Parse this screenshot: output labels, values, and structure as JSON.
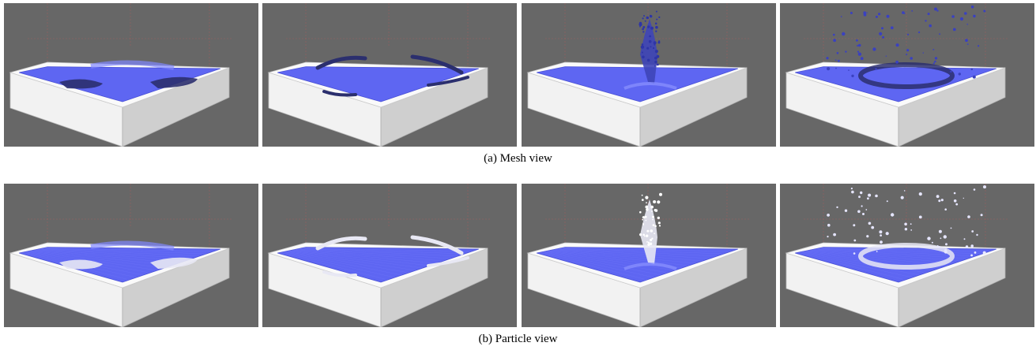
{
  "figure": {
    "rows": [
      {
        "view": "mesh",
        "caption": "(a) Mesh view",
        "panels": [
          {
            "stage": "initial-waves"
          },
          {
            "stage": "waves-spread"
          },
          {
            "stage": "central-splash"
          },
          {
            "stage": "droplet-spray"
          }
        ]
      },
      {
        "view": "particle",
        "caption": "(b) Particle view",
        "panels": [
          {
            "stage": "initial-waves"
          },
          {
            "stage": "waves-spread"
          },
          {
            "stage": "central-splash"
          },
          {
            "stage": "droplet-spray"
          }
        ]
      }
    ],
    "colors": {
      "background": "#676767",
      "tank": "#f2f2f2",
      "tank_shade": "#cfcfcf",
      "fluid": "#5e66f2",
      "fluid_dark": "#2b2f6e",
      "particle_white": "#e8e8f4",
      "guide_lines": "#c75a5a"
    }
  }
}
